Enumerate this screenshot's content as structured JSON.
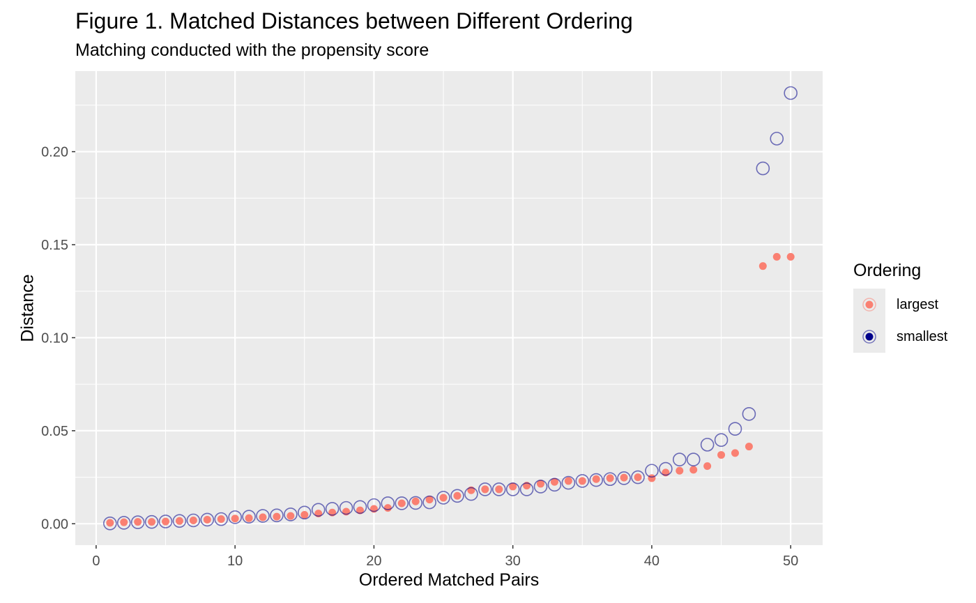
{
  "chart_data": {
    "type": "scatter",
    "title": "Figure 1. Matched Distances between Different Ordering",
    "subtitle": "Matching conducted with the propensity score",
    "xlabel": "Ordered Matched Pairs",
    "ylabel": "Distance",
    "xlim": [
      -1.5,
      52.3
    ],
    "ylim": [
      -0.0115,
      0.2433
    ],
    "xticks": [
      0,
      10,
      20,
      30,
      40,
      50
    ],
    "xtick_labels": [
      "0",
      "10",
      "20",
      "30",
      "40",
      "50"
    ],
    "yticks": [
      0.0,
      0.05,
      0.1,
      0.15,
      0.2
    ],
    "ytick_labels": [
      "0.00",
      "0.05",
      "0.10",
      "0.15",
      "0.20"
    ],
    "grid": true,
    "legend_placement": "right",
    "legend_title": "Ordering",
    "x": [
      1,
      2,
      3,
      4,
      5,
      6,
      7,
      8,
      9,
      10,
      11,
      12,
      13,
      14,
      15,
      16,
      17,
      18,
      19,
      20,
      21,
      22,
      23,
      24,
      25,
      26,
      27,
      28,
      29,
      30,
      31,
      32,
      33,
      34,
      35,
      36,
      37,
      38,
      39,
      40,
      41,
      42,
      43,
      44,
      45,
      46,
      47,
      48,
      49,
      50
    ],
    "series": [
      {
        "name": "largest",
        "color": "#fa8072",
        "marker": "filled-circle",
        "values": [
          0.0005,
          0.0008,
          0.001,
          0.001,
          0.0012,
          0.0015,
          0.0018,
          0.0022,
          0.0025,
          0.0028,
          0.003,
          0.0035,
          0.0038,
          0.0042,
          0.0048,
          0.0055,
          0.006,
          0.0065,
          0.0072,
          0.008,
          0.0085,
          0.011,
          0.012,
          0.013,
          0.014,
          0.015,
          0.018,
          0.0185,
          0.0185,
          0.02,
          0.0205,
          0.0215,
          0.0225,
          0.023,
          0.023,
          0.024,
          0.0245,
          0.0248,
          0.025,
          0.0245,
          0.0275,
          0.0285,
          0.029,
          0.031,
          0.037,
          0.038,
          0.0415,
          0.1385,
          0.1435,
          0.1435
        ]
      },
      {
        "name": "smallest",
        "color": "#00008b",
        "marker": "open-circle",
        "values": [
          0.0002,
          0.0005,
          0.0008,
          0.001,
          0.0012,
          0.0015,
          0.0018,
          0.0022,
          0.0025,
          0.0035,
          0.0038,
          0.0042,
          0.0045,
          0.005,
          0.006,
          0.0075,
          0.008,
          0.0085,
          0.009,
          0.01,
          0.011,
          0.011,
          0.0112,
          0.0115,
          0.014,
          0.015,
          0.016,
          0.0185,
          0.0185,
          0.0185,
          0.0185,
          0.02,
          0.021,
          0.022,
          0.023,
          0.0235,
          0.024,
          0.0245,
          0.025,
          0.0285,
          0.0295,
          0.0345,
          0.0345,
          0.0425,
          0.045,
          0.051,
          0.059,
          0.191,
          0.207,
          0.2315
        ]
      }
    ]
  }
}
